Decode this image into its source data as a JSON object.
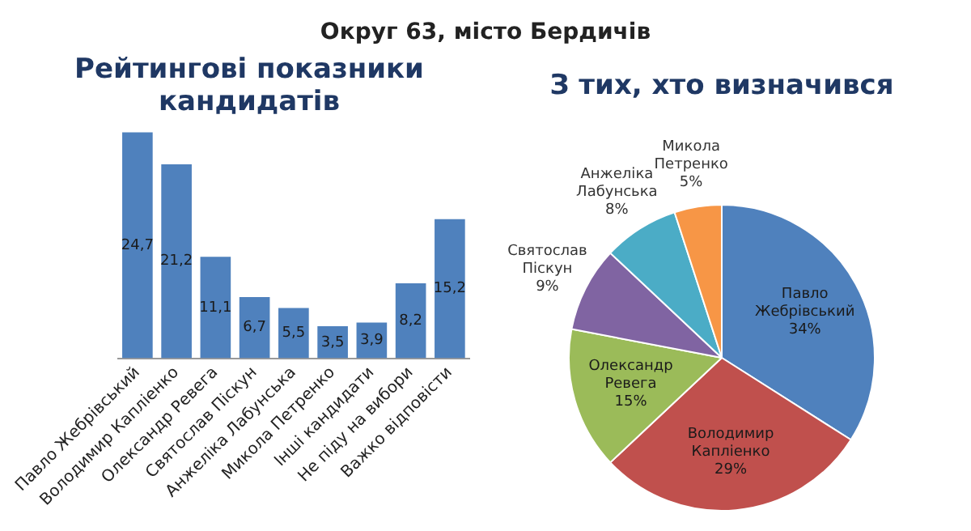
{
  "chart_data": [
    {
      "type": "bar",
      "title": "Округ 63, місто Бердичів",
      "subtitle": "Рейтингові показники кандидатів",
      "categories": [
        "Павло Жебрівський",
        "Володимир Капліенко",
        "Олександр Ревега",
        "Святослав Піскун",
        "Анжеліка Лабунська",
        "Микола Петренко",
        "Інші кандидати",
        "Не піду на вибори",
        "Важко відповісти"
      ],
      "values": [
        24.7,
        21.2,
        11.1,
        6.7,
        5.5,
        3.5,
        3.9,
        8.2,
        15.2
      ],
      "value_labels": [
        "24,7",
        "21,2",
        "11,1",
        "6,7",
        "5,5",
        "3,5",
        "3,9",
        "8,2",
        "15,2"
      ],
      "color": "#4f81bd",
      "grid": false,
      "legend": false,
      "tick_labels": "x"
    },
    {
      "type": "pie",
      "title": "З тих, хто визначився",
      "categories": [
        "Павло Жебрівський",
        "Володимир Капліенко",
        "Олександр Ревега",
        "Святослав Піскун",
        "Анжеліка Лабунська",
        "Микола Петренко"
      ],
      "values": [
        34,
        29,
        15,
        9,
        8,
        5
      ],
      "value_labels": [
        "34%",
        "29%",
        "15%",
        "9%",
        "8%",
        "5%"
      ],
      "colors": [
        "#4f81bd",
        "#c0504d",
        "#9bbb59",
        "#8064a2",
        "#4bacc6",
        "#f79646"
      ],
      "legend": false
    }
  ]
}
